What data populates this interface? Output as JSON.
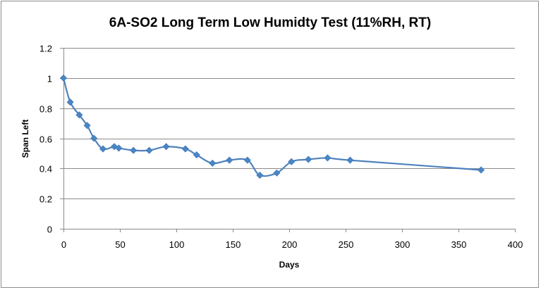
{
  "chart_data": {
    "type": "line",
    "title": "6A-SO2 Long Term Low Humidty Test (11%RH, RT)",
    "xlabel": "Days",
    "ylabel": "Span Left",
    "xlim": [
      0,
      400
    ],
    "ylim": [
      0,
      1.2
    ],
    "x_ticks": [
      "0",
      "50",
      "100",
      "150",
      "200",
      "250",
      "300",
      "350",
      "400"
    ],
    "y_ticks": [
      "0",
      "0.2",
      "0.4",
      "0.6",
      "0.8",
      "1",
      "1.2"
    ],
    "grid": "horizontal",
    "legend": "none",
    "marker": "diamond",
    "line_color": "#4F81BD",
    "marker_color": "#4A86C5",
    "series": [
      {
        "x": [
          0,
          6,
          14,
          21,
          27,
          35,
          45,
          49,
          62,
          76,
          91,
          108,
          118,
          132,
          147,
          163,
          174,
          189,
          202,
          217,
          234,
          254,
          370
        ],
        "y": [
          1.0,
          0.84,
          0.755,
          0.685,
          0.6,
          0.53,
          0.545,
          0.535,
          0.52,
          0.52,
          0.545,
          0.53,
          0.49,
          0.435,
          0.455,
          0.455,
          0.355,
          0.37,
          0.445,
          0.46,
          0.47,
          0.455,
          0.39
        ]
      }
    ]
  }
}
